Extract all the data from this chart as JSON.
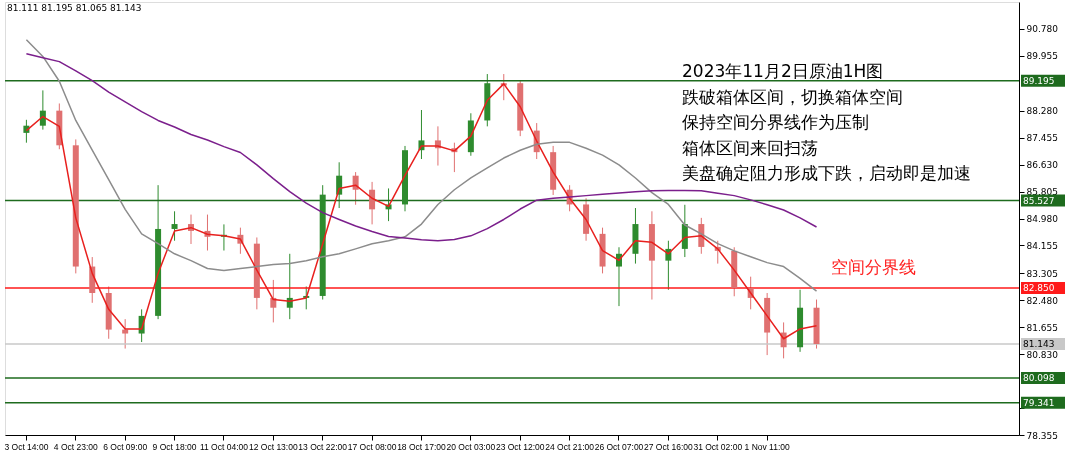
{
  "chart_data": {
    "type": "candlestick",
    "categories": [
      "3 Oct 14:00",
      null,
      null,
      "4 Oct 23:00",
      null,
      null,
      "6 Oct 09:00",
      null,
      null,
      "9 Oct 18:00",
      null,
      null,
      "11 Oct 04:00",
      null,
      null,
      "12 Oct 13:00",
      null,
      null,
      "13 Oct 22:00",
      null,
      null,
      "17 Oct 08:00",
      null,
      null,
      "18 Oct 17:00",
      null,
      null,
      "20 Oct 03:00",
      null,
      null,
      "23 Oct 12:00",
      null,
      null,
      "24 Oct 21:00",
      null,
      null,
      "26 Oct 07:00",
      null,
      null,
      "27 Oct 16:00",
      null,
      null,
      "31 Oct 02:00",
      null,
      null,
      "1 Nov 11:00",
      null,
      null,
      null,
      null,
      null,
      null,
      null,
      null,
      null,
      null,
      null,
      null,
      null,
      null
    ],
    "ohlc": [
      [
        87.6,
        88.0,
        87.3,
        87.82
      ],
      [
        87.82,
        88.9,
        87.7,
        88.28
      ],
      [
        88.28,
        88.5,
        87.1,
        87.22
      ],
      [
        87.22,
        87.4,
        83.3,
        83.51
      ],
      [
        83.51,
        83.8,
        82.4,
        82.7
      ],
      [
        82.7,
        82.9,
        81.3,
        81.58
      ],
      [
        81.58,
        81.9,
        81.0,
        81.46
      ],
      [
        81.46,
        82.2,
        81.2,
        82.0
      ],
      [
        82.0,
        86.0,
        81.9,
        84.66
      ],
      [
        84.66,
        85.2,
        84.3,
        84.81
      ],
      [
        84.81,
        85.1,
        84.2,
        84.6
      ],
      [
        84.6,
        85.1,
        84.0,
        84.42
      ],
      [
        84.42,
        84.8,
        84.0,
        84.48
      ],
      [
        84.48,
        84.7,
        83.9,
        84.21
      ],
      [
        84.21,
        84.4,
        82.2,
        82.55
      ],
      [
        82.55,
        83.1,
        81.8,
        82.25
      ],
      [
        82.25,
        83.9,
        81.9,
        82.55
      ],
      [
        82.55,
        82.9,
        82.2,
        82.61
      ],
      [
        82.61,
        86.0,
        82.5,
        85.71
      ],
      [
        85.71,
        86.7,
        85.3,
        86.29
      ],
      [
        86.29,
        86.4,
        85.4,
        85.86
      ],
      [
        85.86,
        86.1,
        84.8,
        85.26
      ],
      [
        85.26,
        85.9,
        84.9,
        85.41
      ],
      [
        85.41,
        87.2,
        85.2,
        87.07
      ],
      [
        87.07,
        88.3,
        86.8,
        87.37
      ],
      [
        87.37,
        87.8,
        86.6,
        87.13
      ],
      [
        87.13,
        87.3,
        86.4,
        87.01
      ],
      [
        87.01,
        88.2,
        86.9,
        87.98
      ],
      [
        87.98,
        89.4,
        87.8,
        89.12
      ],
      [
        89.12,
        89.4,
        88.6,
        89.05
      ],
      [
        89.12,
        89.2,
        87.5,
        87.67
      ],
      [
        87.67,
        87.9,
        86.8,
        87.01
      ],
      [
        87.01,
        87.2,
        85.7,
        85.86
      ],
      [
        85.86,
        86.0,
        85.2,
        85.41
      ],
      [
        85.41,
        85.6,
        84.3,
        84.51
      ],
      [
        84.51,
        84.7,
        83.3,
        83.51
      ],
      [
        83.51,
        84.1,
        82.3,
        83.9
      ],
      [
        83.9,
        85.3,
        83.6,
        84.81
      ],
      [
        84.81,
        85.2,
        82.5,
        83.69
      ],
      [
        83.69,
        84.3,
        82.8,
        84.05
      ],
      [
        84.05,
        85.4,
        83.8,
        84.81
      ],
      [
        84.81,
        85.0,
        83.9,
        84.11
      ],
      [
        84.11,
        84.3,
        83.6,
        83.99
      ],
      [
        83.99,
        84.1,
        82.6,
        82.85
      ],
      [
        82.85,
        83.2,
        82.2,
        82.55
      ],
      [
        82.55,
        82.7,
        80.8,
        81.49
      ],
      [
        81.49,
        81.8,
        80.7,
        81.04
      ],
      [
        81.04,
        82.8,
        80.9,
        82.25
      ],
      [
        82.25,
        82.5,
        81.0,
        81.14
      ],
      null,
      null,
      null,
      null,
      null,
      null,
      null,
      null,
      null,
      null,
      null
    ],
    "series": [
      {
        "type": "line",
        "color": "#e8201e",
        "values": [
          87.67,
          88.1,
          87.8,
          85.0,
          83.3,
          82.2,
          81.6,
          81.6,
          83.3,
          84.6,
          84.7,
          84.5,
          84.45,
          84.35,
          83.4,
          82.5,
          82.45,
          82.55,
          84.2,
          85.9,
          86.0,
          85.6,
          85.35,
          86.3,
          87.2,
          87.2,
          87.05,
          87.5,
          88.6,
          89.1,
          88.4,
          87.35,
          86.4,
          85.6,
          84.95,
          84.0,
          83.7,
          84.3,
          84.25,
          83.9,
          84.4,
          84.45,
          84.05,
          83.4,
          82.7,
          82.0,
          81.3,
          81.6,
          81.7,
          null,
          null,
          null,
          null,
          null,
          null,
          null,
          null,
          null,
          null,
          null
        ]
      },
      {
        "type": "line",
        "color": "#8c8c8c",
        "values": [
          90.45,
          89.94,
          89.18,
          87.98,
          87.07,
          86.17,
          85.26,
          84.51,
          84.21,
          83.9,
          83.69,
          83.45,
          83.39,
          83.45,
          83.51,
          83.57,
          83.6,
          83.69,
          83.81,
          83.9,
          84.05,
          84.21,
          84.3,
          84.42,
          84.81,
          85.41,
          85.86,
          86.22,
          86.53,
          86.83,
          87.07,
          87.25,
          87.31,
          87.31,
          87.13,
          86.92,
          86.62,
          86.22,
          85.77,
          85.41,
          84.78,
          84.51,
          84.21,
          83.99,
          83.81,
          83.63,
          83.51,
          83.15,
          82.76,
          null,
          null,
          null,
          null,
          null,
          null,
          null,
          null,
          null,
          null,
          null
        ]
      },
      {
        "type": "line",
        "color": "#7b1f8c",
        "values": [
          90.02,
          89.9,
          89.78,
          89.5,
          89.2,
          88.85,
          88.55,
          88.25,
          87.98,
          87.78,
          87.55,
          87.38,
          87.18,
          87.0,
          86.62,
          86.2,
          85.8,
          85.45,
          85.16,
          84.95,
          84.75,
          84.58,
          84.43,
          84.38,
          84.33,
          84.3,
          84.34,
          84.45,
          84.67,
          84.95,
          85.27,
          85.54,
          85.6,
          85.64,
          85.68,
          85.72,
          85.76,
          85.8,
          85.83,
          85.84,
          85.84,
          85.83,
          85.75,
          85.68,
          85.55,
          85.4,
          85.24,
          85.0,
          84.72,
          null,
          null,
          null,
          null,
          null,
          null,
          null,
          null,
          null,
          null,
          null
        ]
      }
    ],
    "ylim": [
      78.355,
      91.605
    ],
    "yticks": [
      {
        "value": 90.78,
        "label": "90.780"
      },
      89.955,
      {
        "value": 88.28,
        "label": "88.280"
      },
      87.455,
      {
        "value": 86.63,
        "label": "86.630"
      },
      85.805,
      {
        "value": 84.98,
        "label": "84.980"
      },
      84.155,
      83.305,
      {
        "value": 82.48,
        "label": "82.480"
      },
      81.655,
      {
        "value": 80.83,
        "label": "80.830"
      },
      {
        "value": 79.18,
        "label": null
      },
      78.355
    ],
    "ref_lines": [
      {
        "axis": "y",
        "value": 89.195,
        "label": "89.195",
        "color": "#1e6b1e"
      },
      {
        "axis": "y",
        "value": 85.527,
        "label": "85.527",
        "color": "#1e6b1e"
      },
      {
        "axis": "y",
        "value": 82.85,
        "label": "82.850",
        "color": "#ff1a1a"
      },
      {
        "axis": "y",
        "value": 81.143,
        "label": "81.143",
        "color": "#c8c8c8"
      },
      {
        "axis": "y",
        "value": 80.098,
        "label": "80.098",
        "color": "#1e6b1e"
      },
      {
        "axis": "y",
        "value": 79.341,
        "label": "79.341",
        "color": "#1e6b1e"
      }
    ],
    "annotations": [
      "81.111 81.195 81.065 81.143",
      "2023年11月2日原油1H图",
      "跌破箱体区间，切换箱体空间",
      "保持空间分界线作为压制",
      "箱体区间来回扫荡",
      "美盘确定阻力形成下跌，启动即是加速",
      "空间分界线"
    ],
    "grid": false
  }
}
